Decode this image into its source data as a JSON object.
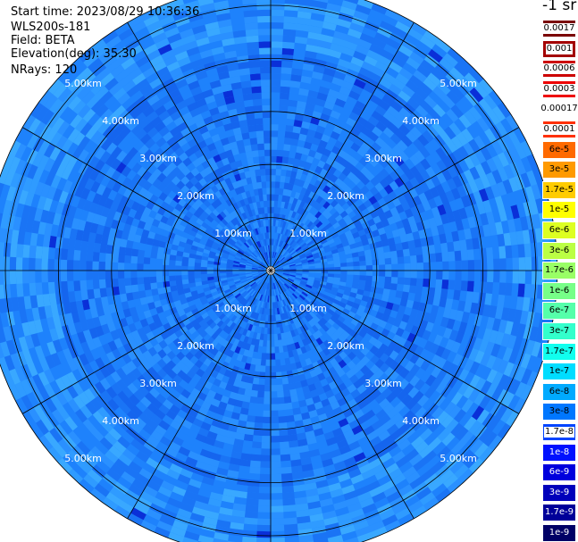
{
  "info": {
    "start_time": "Start time: 2023/08/29 10:36:36",
    "instrument": "WLS200s-181",
    "field": "Field: BETA",
    "elevation": "Elevation(deg): 35.30",
    "nrays": "NRays: 120"
  },
  "colorbar": {
    "title": "-1 sr",
    "levels": [
      {
        "label": "0.0017",
        "color": "#7a0000",
        "text_color": "#000000",
        "label_bg": "#ffffff"
      },
      {
        "label": "0.001",
        "color": "#a30000",
        "text_color": "#000000",
        "label_bg": "#ffffff"
      },
      {
        "label": "0.0006",
        "color": "#cc0000",
        "text_color": "#000000",
        "label_bg": "#ffffff"
      },
      {
        "label": "0.0003",
        "color": "#ee0000",
        "text_color": "#000000",
        "label_bg": "#ffffff"
      },
      {
        "label": "0.00017",
        "color": "#ffffff",
        "text_color": "#000000",
        "label_bg": "#ffffff"
      },
      {
        "label": "0.0001",
        "color": "#ff3000",
        "text_color": "#000000",
        "label_bg": "#ffffff"
      },
      {
        "label": "6e-5",
        "color": "#ff6a00",
        "text_color": "#000000",
        "label_bg": ""
      },
      {
        "label": "3e-5",
        "color": "#ff9a00",
        "text_color": "#000000",
        "label_bg": ""
      },
      {
        "label": "1.7e-5",
        "color": "#ffcc00",
        "text_color": "#000000",
        "label_bg": ""
      },
      {
        "label": "1e-5",
        "color": "#ffff00",
        "text_color": "#000000",
        "label_bg": ""
      },
      {
        "label": "6e-6",
        "color": "#ddff22",
        "text_color": "#000000",
        "label_bg": ""
      },
      {
        "label": "3e-6",
        "color": "#bbff44",
        "text_color": "#000000",
        "label_bg": ""
      },
      {
        "label": "1.7e-6",
        "color": "#99ff66",
        "text_color": "#000000",
        "label_bg": ""
      },
      {
        "label": "1e-6",
        "color": "#77ff88",
        "text_color": "#000000",
        "label_bg": ""
      },
      {
        "label": "6e-7",
        "color": "#55ffaa",
        "text_color": "#000000",
        "label_bg": ""
      },
      {
        "label": "3e-7",
        "color": "#33ffcc",
        "text_color": "#000000",
        "label_bg": ""
      },
      {
        "label": "1.7e-7",
        "color": "#11ffee",
        "text_color": "#000000",
        "label_bg": ""
      },
      {
        "label": "1e-7",
        "color": "#00ddff",
        "text_color": "#000000",
        "label_bg": ""
      },
      {
        "label": "6e-8",
        "color": "#00aaff",
        "text_color": "#000000",
        "label_bg": ""
      },
      {
        "label": "3e-8",
        "color": "#0077ff",
        "text_color": "#000000",
        "label_bg": ""
      },
      {
        "label": "1.7e-8",
        "color": "#0044ff",
        "text_color": "#000000",
        "label_bg": "#ffffff"
      },
      {
        "label": "1e-8",
        "color": "#0011ff",
        "text_color": "#ffffff",
        "label_bg": ""
      },
      {
        "label": "6e-9",
        "color": "#0000dd",
        "text_color": "#ffffff",
        "label_bg": ""
      },
      {
        "label": "3e-9",
        "color": "#0000bb",
        "text_color": "#ffffff",
        "label_bg": ""
      },
      {
        "label": "1.7e-9",
        "color": "#000099",
        "text_color": "#ffffff",
        "label_bg": ""
      },
      {
        "label": "1e-9",
        "color": "#000066",
        "text_color": "#ffffff",
        "label_bg": ""
      }
    ]
  },
  "chart_data": {
    "type": "heatmap",
    "projection": "polar PPI",
    "field": "BETA",
    "elevation_deg": 35.3,
    "n_rays": 120,
    "range_rings_km": [
      1,
      2,
      3,
      4,
      5
    ],
    "range_ring_labels": [
      "1.00km",
      "2.00km",
      "3.00km",
      "4.00km",
      "5.00km"
    ],
    "max_range_km": 5.4,
    "azimuth_spokes_deg": [
      0,
      30,
      60,
      90,
      120,
      150,
      180,
      210,
      240,
      270,
      300,
      330
    ],
    "background_color": "#1e88ff",
    "typical_value_range": [
      "3e-8",
      "1e-7"
    ],
    "grid": true
  }
}
